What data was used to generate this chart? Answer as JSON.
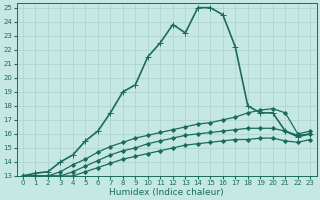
{
  "title": "",
  "xlabel": "Humidex (Indice chaleur)",
  "ylabel": "",
  "xlim": [
    -0.5,
    23.5
  ],
  "ylim": [
    13,
    25.3
  ],
  "background_color": "#c5e8e3",
  "grid_color": "#b0d5cf",
  "line_color": "#1a6b5e",
  "lines": [
    {
      "x": [
        0,
        1,
        2,
        3,
        4,
        5,
        6,
        7,
        8,
        9,
        10,
        11,
        12,
        13,
        14,
        15,
        16,
        17,
        18,
        19,
        20,
        21,
        22,
        23
      ],
      "y": [
        13,
        13.2,
        13.3,
        14,
        14.5,
        15.5,
        16.2,
        17.5,
        19.0,
        19.5,
        21.5,
        22.5,
        23.8,
        23.2,
        25.0,
        25.0,
        24.5,
        22.2,
        18.0,
        17.5,
        17.5,
        16.2,
        15.8,
        16.0
      ],
      "marker": "+",
      "linewidth": 1.2,
      "markersize": 5,
      "zorder": 3
    },
    {
      "x": [
        0,
        1,
        2,
        3,
        4,
        5,
        6,
        7,
        8,
        9,
        10,
        11,
        12,
        13,
        14,
        15,
        16,
        17,
        18,
        19,
        20,
        21,
        22,
        23
      ],
      "y": [
        13,
        13,
        13,
        13.3,
        13.8,
        14.2,
        14.7,
        15.1,
        15.4,
        15.7,
        15.9,
        16.1,
        16.3,
        16.5,
        16.7,
        16.8,
        17.0,
        17.2,
        17.5,
        17.7,
        17.8,
        17.5,
        16.0,
        16.2
      ],
      "marker": "D",
      "linewidth": 0.9,
      "markersize": 2.0,
      "zorder": 2
    },
    {
      "x": [
        0,
        1,
        2,
        3,
        4,
        5,
        6,
        7,
        8,
        9,
        10,
        11,
        12,
        13,
        14,
        15,
        16,
        17,
        18,
        19,
        20,
        21,
        22,
        23
      ],
      "y": [
        13,
        13,
        13,
        13,
        13.3,
        13.7,
        14.1,
        14.5,
        14.8,
        15.0,
        15.3,
        15.5,
        15.7,
        15.9,
        16.0,
        16.1,
        16.2,
        16.3,
        16.4,
        16.4,
        16.4,
        16.2,
        15.9,
        16.0
      ],
      "marker": "D",
      "linewidth": 0.9,
      "markersize": 2.0,
      "zorder": 2
    },
    {
      "x": [
        0,
        1,
        2,
        3,
        4,
        5,
        6,
        7,
        8,
        9,
        10,
        11,
        12,
        13,
        14,
        15,
        16,
        17,
        18,
        19,
        20,
        21,
        22,
        23
      ],
      "y": [
        13,
        13,
        13,
        13,
        13,
        13.3,
        13.6,
        13.9,
        14.2,
        14.4,
        14.6,
        14.8,
        15.0,
        15.2,
        15.3,
        15.4,
        15.5,
        15.6,
        15.6,
        15.7,
        15.7,
        15.5,
        15.4,
        15.6
      ],
      "marker": "D",
      "linewidth": 0.9,
      "markersize": 2.0,
      "zorder": 2
    }
  ],
  "xticks": [
    0,
    1,
    2,
    3,
    4,
    5,
    6,
    7,
    8,
    9,
    10,
    11,
    12,
    13,
    14,
    15,
    16,
    17,
    18,
    19,
    20,
    21,
    22,
    23
  ],
  "yticks": [
    13,
    14,
    15,
    16,
    17,
    18,
    19,
    20,
    21,
    22,
    23,
    24,
    25
  ],
  "tick_fontsize": 5.0,
  "label_fontsize": 6.5
}
